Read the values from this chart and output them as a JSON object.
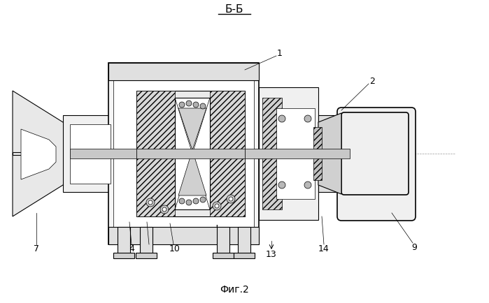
{
  "title": "Б-Б",
  "caption": "Фиг.2",
  "bg_color": "#ffffff",
  "line_color": "#000000",
  "figsize": [
    6.99,
    4.34
  ],
  "dpi": 100
}
